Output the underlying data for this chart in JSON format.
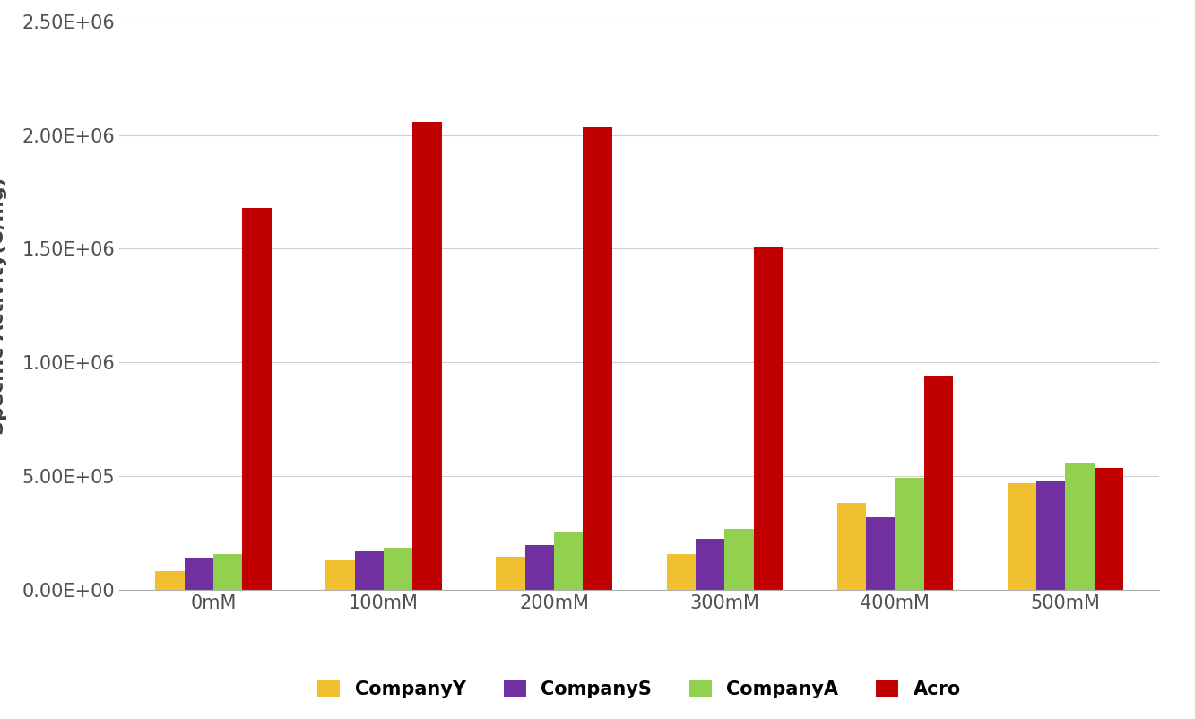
{
  "categories": [
    "0mM",
    "100mM",
    "200mM",
    "300mM",
    "400mM",
    "500mM"
  ],
  "series": {
    "CompanyY": [
      80000,
      130000,
      145000,
      155000,
      380000,
      470000
    ],
    "CompanyS": [
      140000,
      170000,
      195000,
      225000,
      320000,
      480000
    ],
    "CompanyA": [
      155000,
      185000,
      255000,
      265000,
      490000,
      560000
    ],
    "Acro": [
      1680000,
      2060000,
      2035000,
      1505000,
      940000,
      535000
    ]
  },
  "colors": {
    "CompanyY": "#F0C030",
    "CompanyS": "#7030A0",
    "CompanyA": "#92D050",
    "Acro": "#C00000"
  },
  "ylim": [
    0,
    2500000
  ],
  "yticks": [
    0,
    500000,
    1000000,
    1500000,
    2000000,
    2500000
  ],
  "ytick_labels": [
    "0.00E+00",
    "5.00E+05",
    "1.00E+06",
    "1.50E+06",
    "2.00E+06",
    "2.50E+06"
  ],
  "legend_order": [
    "CompanyY",
    "CompanyS",
    "CompanyA",
    "Acro"
  ],
  "bar_width": 0.17,
  "background_color": "#ffffff",
  "grid_color": "#d0d0d0"
}
